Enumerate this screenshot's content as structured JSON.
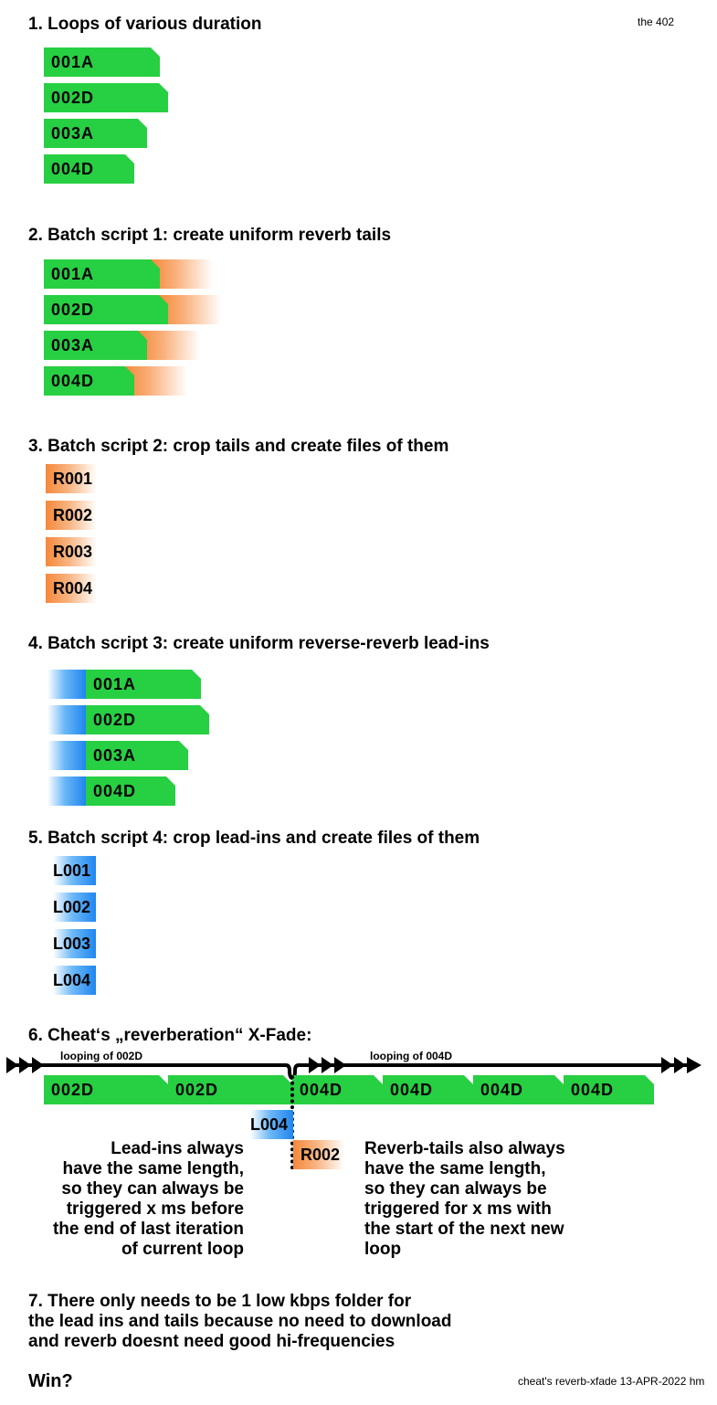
{
  "corner_top_right": "the 402",
  "corner_bottom_right": "cheat's reverb-xfade 13-APR-2022 hm",
  "sections": {
    "s1": {
      "title": "1. Loops of various duration",
      "loops": [
        "001A",
        "002D",
        "003A",
        "004D"
      ]
    },
    "s2": {
      "title": "2. Batch script 1: create uniform reverb tails",
      "loops": [
        "001A",
        "002D",
        "003A",
        "004D"
      ]
    },
    "s3": {
      "title": "3. Batch script 2: crop tails and create files of them",
      "files": [
        "R001",
        "R002",
        "R003",
        "R004"
      ]
    },
    "s4": {
      "title": "4. Batch script 3: create uniform reverse-reverb lead-ins",
      "loops": [
        "001A",
        "002D",
        "003A",
        "004D"
      ]
    },
    "s5": {
      "title": "5. Batch script 4: crop lead-ins and create files of them",
      "files": [
        "L001",
        "L002",
        "L003",
        "L004"
      ]
    },
    "s6": {
      "title": "6. Cheat‘s „reverberation“ X-Fade:",
      "timeline_left_label": "looping of 002D",
      "timeline_right_label": "looping of 004D",
      "clips": [
        "002D",
        "002D",
        "004D",
        "004D",
        "004D",
        "004D"
      ],
      "leadin": "L004",
      "tail": "R002",
      "note_left": [
        "Lead-ins always",
        "have the same length,",
        "so they can always be",
        "triggered x ms before",
        "the end of last iteration",
        "of current loop"
      ],
      "note_right": [
        "Reverb-tails also always",
        "have the same length,",
        "so they can always be",
        "triggered for x ms with",
        "the start of the next new",
        "loop"
      ]
    },
    "s7": {
      "lines": [
        "7. There only needs to be 1 low kbps folder for",
        "the lead ins and tails because no need to download",
        "and reverb doesnt need good hi-frequencies"
      ]
    },
    "win": "Win?"
  },
  "colors": {
    "loop_green": "#27cf42",
    "tail_orange": "#f5883a",
    "leadin_blue": "#1f86ef",
    "timeline_black": "#000000"
  }
}
